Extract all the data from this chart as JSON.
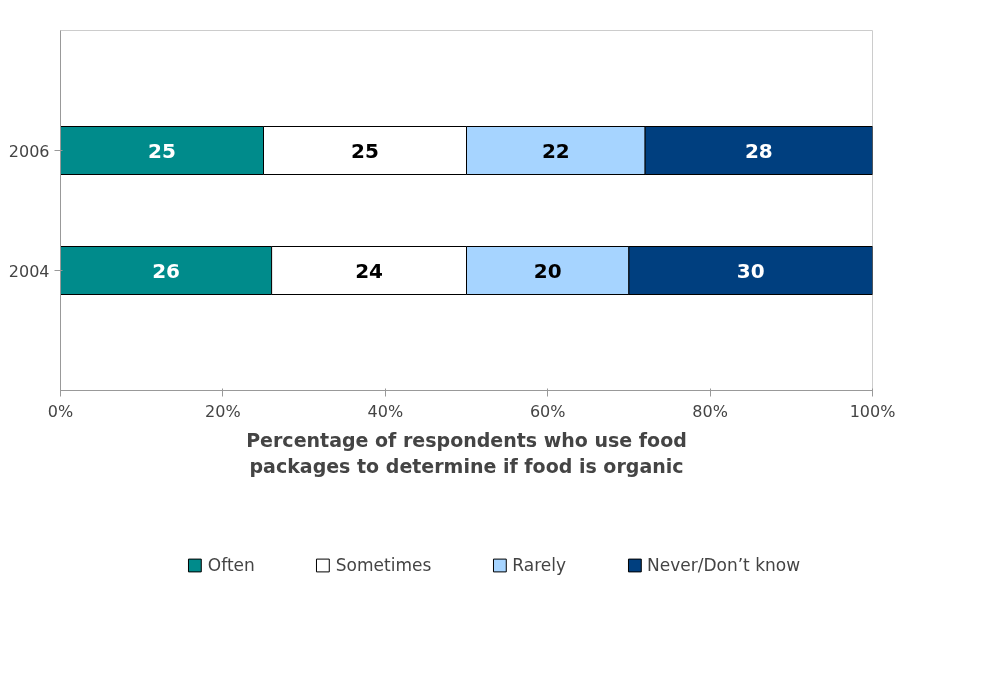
{
  "chart_data": {
    "type": "bar",
    "orientation": "horizontal",
    "stacked": true,
    "categories": [
      "2006",
      "2004"
    ],
    "series": [
      {
        "name": "Often",
        "color": "#008b8b",
        "values": [
          25,
          26
        ]
      },
      {
        "name": "Sometimes",
        "color": "#ffffff",
        "values": [
          25,
          24
        ]
      },
      {
        "name": "Rarely",
        "color": "#a6d4ff",
        "values": [
          22,
          20
        ]
      },
      {
        "name": "Never/Don’t know",
        "color": "#003f7f",
        "values": [
          28,
          30
        ]
      }
    ],
    "xlabel": "Percentage of respondents who use food\npackages to determine if food is organic",
    "xlim": [
      0,
      100
    ],
    "xticks": [
      {
        "value": 0,
        "label": "0%"
      },
      {
        "value": 20,
        "label": "20%"
      },
      {
        "value": 40,
        "label": "40%"
      },
      {
        "value": 60,
        "label": "60%"
      },
      {
        "value": 80,
        "label": "80%"
      },
      {
        "value": 100,
        "label": "100%"
      }
    ],
    "data_labels": true,
    "legend": "bottom",
    "grid": false
  }
}
